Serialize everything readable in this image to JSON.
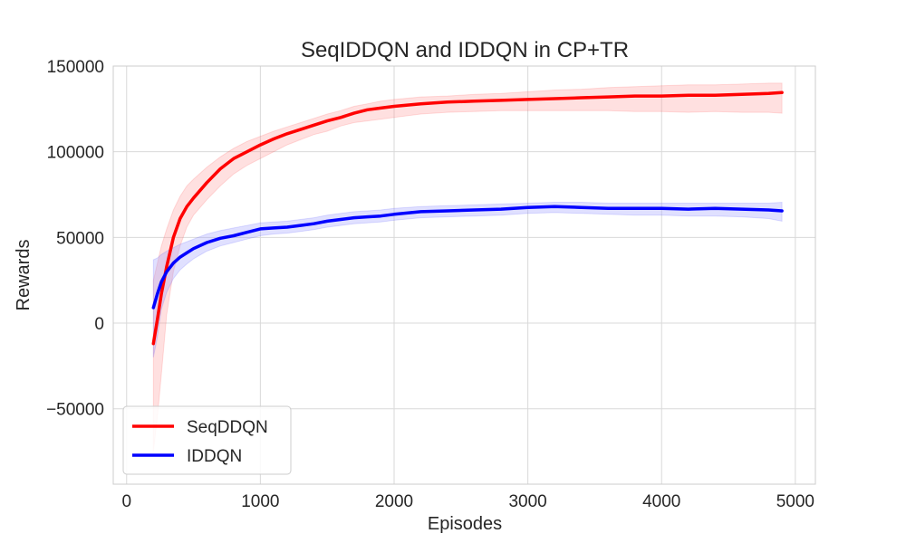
{
  "chart_data": {
    "type": "line",
    "title": "SeqIDDQN and IDDQN in CP+TR",
    "xlabel": "Episodes",
    "ylabel": "Rewards",
    "xlim": [
      -100,
      5150
    ],
    "ylim": [
      -94000,
      150000
    ],
    "xticks": [
      0,
      1000,
      2000,
      3000,
      4000,
      5000
    ],
    "xtick_labels": [
      "0",
      "1000",
      "2000",
      "3000",
      "4000",
      "5000"
    ],
    "yticks": [
      -50000,
      0,
      50000,
      100000,
      150000
    ],
    "ytick_labels": [
      "−50000",
      "0",
      "50000",
      "100000",
      "150000"
    ],
    "grid": true,
    "legend_position": "lower-left",
    "series": [
      {
        "name": "SeqDDQN",
        "color": "#ff0000",
        "band_color": "#ff9999",
        "x": [
          200,
          230,
          260,
          300,
          350,
          400,
          450,
          500,
          600,
          700,
          800,
          900,
          1000,
          1100,
          1200,
          1300,
          1400,
          1500,
          1600,
          1700,
          1800,
          1900,
          2000,
          2200,
          2400,
          2600,
          2800,
          3000,
          3200,
          3400,
          3600,
          3800,
          4000,
          4200,
          4400,
          4600,
          4800,
          4900
        ],
        "y": [
          -12000,
          2000,
          17000,
          33000,
          50000,
          61000,
          68000,
          73000,
          82000,
          90000,
          96000,
          100000,
          104000,
          107500,
          110500,
          113000,
          115500,
          118000,
          120000,
          122500,
          124500,
          125500,
          126500,
          128000,
          129000,
          129500,
          130000,
          130500,
          131000,
          131500,
          132000,
          132500,
          132500,
          133000,
          133000,
          133500,
          134000,
          134500
        ],
        "lower": [
          -75000,
          -55000,
          -30000,
          5000,
          30000,
          45000,
          56000,
          63000,
          72000,
          80000,
          87000,
          92000,
          96000,
          100000,
          104000,
          107000,
          110000,
          112000,
          115000,
          117000,
          118000,
          119000,
          120000,
          122000,
          123000,
          123500,
          124000,
          124000,
          124000,
          124000,
          124000,
          123500,
          123500,
          123000,
          123500,
          123000,
          123000,
          122500
        ],
        "upper": [
          25000,
          35000,
          45000,
          55000,
          66000,
          74000,
          80000,
          84000,
          91000,
          97000,
          102000,
          106000,
          109000,
          112000,
          114500,
          117000,
          119500,
          122000,
          124000,
          126500,
          128000,
          129500,
          130500,
          132000,
          132500,
          133500,
          134000,
          135000,
          136000,
          136500,
          137500,
          138000,
          138500,
          139000,
          139000,
          139500,
          140000,
          140000
        ]
      },
      {
        "name": "IDDQN",
        "color": "#0000ff",
        "band_color": "#9999ff",
        "x": [
          200,
          230,
          260,
          300,
          350,
          400,
          450,
          500,
          600,
          700,
          800,
          900,
          1000,
          1100,
          1200,
          1300,
          1400,
          1500,
          1600,
          1700,
          1800,
          1900,
          2000,
          2200,
          2400,
          2600,
          2800,
          3000,
          3200,
          3400,
          3600,
          3800,
          4000,
          4200,
          4400,
          4600,
          4800,
          4900
        ],
        "y": [
          9000,
          17000,
          24000,
          30000,
          35000,
          38500,
          41000,
          43500,
          47000,
          49500,
          51000,
          53000,
          55000,
          55500,
          56000,
          57000,
          58000,
          59500,
          60500,
          61500,
          62000,
          62500,
          63500,
          65000,
          65500,
          66000,
          66500,
          67500,
          68000,
          67500,
          67000,
          67000,
          67000,
          66500,
          67000,
          66500,
          66000,
          65500
        ],
        "lower": [
          -20000,
          -8000,
          8000,
          18000,
          26000,
          31000,
          34500,
          37500,
          42000,
          45000,
          47000,
          49000,
          51000,
          52000,
          52500,
          53500,
          54500,
          56000,
          57000,
          58000,
          58500,
          59000,
          60000,
          61500,
          62000,
          62500,
          63000,
          64000,
          64500,
          64000,
          63500,
          63000,
          63000,
          62500,
          62500,
          62000,
          61000,
          59500
        ],
        "upper": [
          37000,
          38000,
          40000,
          42000,
          44000,
          46000,
          47500,
          49000,
          52000,
          54000,
          55500,
          57000,
          58500,
          59000,
          59500,
          60500,
          61500,
          63000,
          64000,
          65000,
          65500,
          66000,
          67000,
          68000,
          68500,
          69000,
          69500,
          70000,
          70500,
          70500,
          70000,
          70000,
          70000,
          70000,
          70000,
          70000,
          70000,
          70500
        ]
      }
    ]
  }
}
